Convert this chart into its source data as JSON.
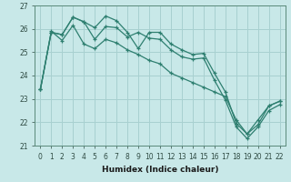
{
  "xlabel": "Humidex (Indice chaleur)",
  "ylabel": "",
  "bg_color": "#c8e8e8",
  "grid_color": "#a8d0d0",
  "line_color": "#2e7f70",
  "xlim": [
    0,
    22
  ],
  "ylim": [
    21,
    27
  ],
  "xtick_labels": [
    "0",
    "1",
    "2",
    "3",
    "4",
    "5",
    "6",
    "7",
    "8",
    "9",
    "10",
    "11",
    "12",
    "13",
    "14",
    "15",
    "16",
    "17",
    "18",
    "19",
    "20",
    "21",
    "22"
  ],
  "ytick_labels": [
    "21",
    "22",
    "23",
    "24",
    "25",
    "26",
    "27"
  ],
  "series": [
    [
      23.4,
      25.85,
      25.75,
      26.5,
      26.3,
      26.05,
      26.55,
      26.35,
      25.85,
      25.15,
      25.85,
      25.85,
      25.35,
      25.1,
      24.9,
      24.95,
      24.1,
      23.3,
      21.95,
      21.5,
      21.9,
      22.7,
      22.9
    ],
    [
      23.4,
      25.85,
      25.75,
      26.5,
      26.3,
      25.55,
      26.1,
      26.05,
      25.65,
      25.85,
      25.6,
      25.55,
      25.1,
      24.8,
      24.7,
      24.75,
      23.8,
      22.95,
      21.8,
      21.3,
      21.8,
      22.5,
      22.75
    ],
    [
      23.4,
      25.9,
      25.5,
      26.15,
      25.35,
      25.15,
      25.55,
      25.4,
      25.1,
      24.9,
      24.65,
      24.5,
      24.1,
      23.9,
      23.7,
      23.5,
      23.3,
      23.1,
      22.1,
      21.5,
      22.1,
      22.7,
      22.9
    ]
  ]
}
